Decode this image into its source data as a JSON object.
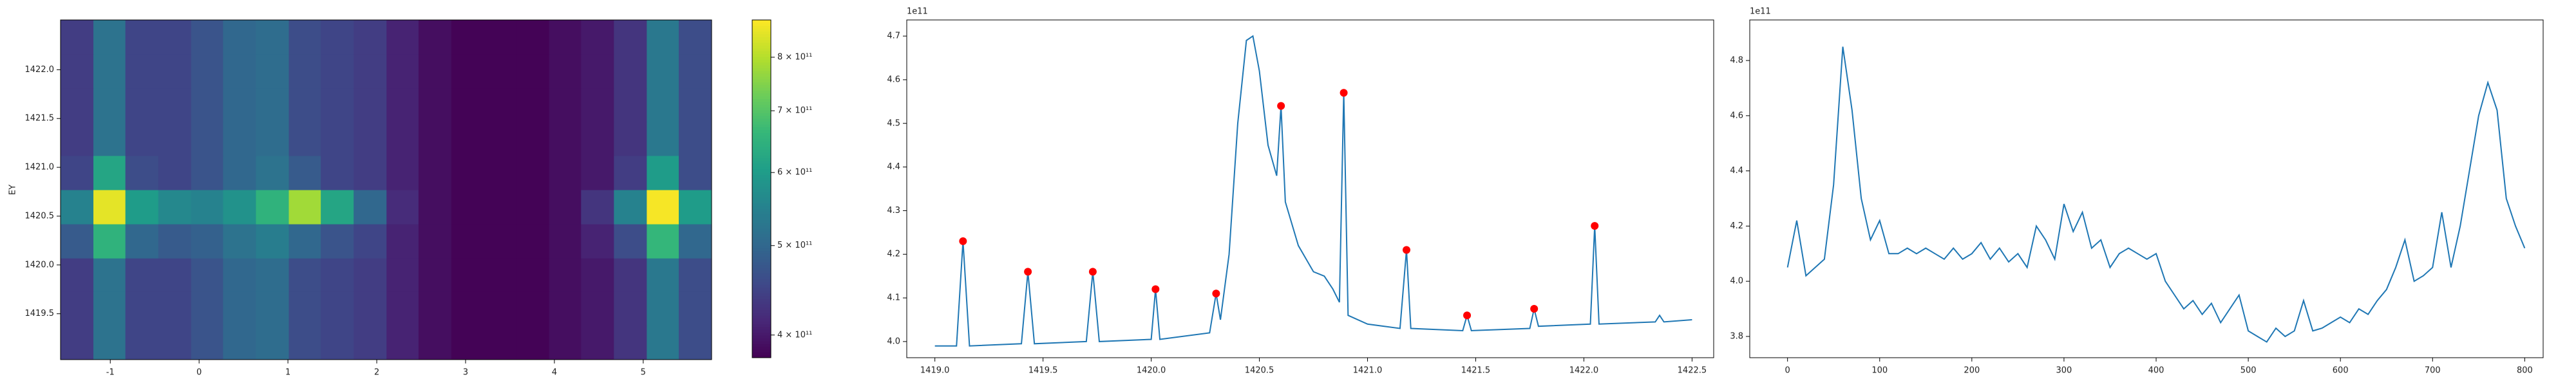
{
  "chart_data": [
    {
      "type": "heatmap",
      "ylabel": "EY",
      "x_edges": [
        -1.56,
        -1.19,
        -0.83,
        -0.46,
        -0.09,
        0.27,
        0.64,
        1.01,
        1.37,
        1.74,
        2.11,
        2.47,
        2.84,
        3.21,
        3.57,
        3.94,
        4.3,
        4.67,
        5.04,
        5.4,
        5.77
      ],
      "y_edges": [
        1419.03,
        1419.38,
        1419.73,
        1420.07,
        1420.42,
        1420.77,
        1421.12,
        1421.47,
        1421.81,
        1422.16,
        1422.51
      ],
      "z": [
        [
          440000000000.0,
          520000000000.0,
          450000000000.0,
          450000000000.0,
          470000000000.0,
          500000000000.0,
          510000000000.0,
          460000000000.0,
          450000000000.0,
          440000000000.0,
          410000000000.0,
          390000000000.0,
          380000000000.0,
          380000000000.0,
          380000000000.0,
          390000000000.0,
          400000000000.0,
          430000000000.0,
          530000000000.0,
          460000000000.0
        ],
        [
          440000000000.0,
          520000000000.0,
          450000000000.0,
          450000000000.0,
          470000000000.0,
          500000000000.0,
          510000000000.0,
          460000000000.0,
          450000000000.0,
          440000000000.0,
          410000000000.0,
          390000000000.0,
          380000000000.0,
          380000000000.0,
          380000000000.0,
          390000000000.0,
          400000000000.0,
          430000000000.0,
          530000000000.0,
          460000000000.0
        ],
        [
          440000000000.0,
          520000000000.0,
          450000000000.0,
          450000000000.0,
          470000000000.0,
          500000000000.0,
          510000000000.0,
          460000000000.0,
          450000000000.0,
          440000000000.0,
          410000000000.0,
          390000000000.0,
          380000000000.0,
          380000000000.0,
          380000000000.0,
          390000000000.0,
          400000000000.0,
          430000000000.0,
          530000000000.0,
          460000000000.0
        ],
        [
          480000000000.0,
          650000000000.0,
          500000000000.0,
          480000000000.0,
          490000000000.0,
          520000000000.0,
          540000000000.0,
          500000000000.0,
          470000000000.0,
          450000000000.0,
          410000000000.0,
          390000000000.0,
          380000000000.0,
          380000000000.0,
          380000000000.0,
          390000000000.0,
          410000000000.0,
          460000000000.0,
          660000000000.0,
          500000000000.0
        ],
        [
          550000000000.0,
          850000000000.0,
          600000000000.0,
          560000000000.0,
          550000000000.0,
          580000000000.0,
          650000000000.0,
          780000000000.0,
          620000000000.0,
          500000000000.0,
          420000000000.0,
          390000000000.0,
          380000000000.0,
          380000000000.0,
          380000000000.0,
          390000000000.0,
          430000000000.0,
          550000000000.0,
          870000000000.0,
          600000000000.0
        ],
        [
          450000000000.0,
          620000000000.0,
          460000000000.0,
          450000000000.0,
          470000000000.0,
          500000000000.0,
          520000000000.0,
          480000000000.0,
          450000000000.0,
          440000000000.0,
          410000000000.0,
          390000000000.0,
          380000000000.0,
          380000000000.0,
          380000000000.0,
          390000000000.0,
          400000000000.0,
          440000000000.0,
          600000000000.0,
          460000000000.0
        ],
        [
          440000000000.0,
          520000000000.0,
          450000000000.0,
          450000000000.0,
          470000000000.0,
          500000000000.0,
          510000000000.0,
          460000000000.0,
          450000000000.0,
          440000000000.0,
          410000000000.0,
          390000000000.0,
          380000000000.0,
          380000000000.0,
          380000000000.0,
          390000000000.0,
          400000000000.0,
          430000000000.0,
          530000000000.0,
          460000000000.0
        ],
        [
          440000000000.0,
          520000000000.0,
          450000000000.0,
          450000000000.0,
          470000000000.0,
          500000000000.0,
          510000000000.0,
          460000000000.0,
          450000000000.0,
          440000000000.0,
          410000000000.0,
          390000000000.0,
          380000000000.0,
          380000000000.0,
          380000000000.0,
          390000000000.0,
          400000000000.0,
          430000000000.0,
          530000000000.0,
          460000000000.0
        ],
        [
          440000000000.0,
          520000000000.0,
          450000000000.0,
          450000000000.0,
          470000000000.0,
          500000000000.0,
          510000000000.0,
          460000000000.0,
          450000000000.0,
          440000000000.0,
          410000000000.0,
          390000000000.0,
          380000000000.0,
          380000000000.0,
          380000000000.0,
          390000000000.0,
          400000000000.0,
          430000000000.0,
          530000000000.0,
          460000000000.0
        ],
        [
          440000000000.0,
          520000000000.0,
          450000000000.0,
          450000000000.0,
          470000000000.0,
          500000000000.0,
          510000000000.0,
          460000000000.0,
          450000000000.0,
          440000000000.0,
          410000000000.0,
          390000000000.0,
          380000000000.0,
          380000000000.0,
          380000000000.0,
          390000000000.0,
          400000000000.0,
          430000000000.0,
          530000000000.0,
          460000000000.0
        ]
      ],
      "xlim": [
        -1.56,
        5.77
      ],
      "ylim": [
        1419.03,
        1422.51
      ],
      "xticks": [
        -1,
        0,
        1,
        2,
        3,
        4,
        5
      ],
      "yticks": [
        1419.5,
        {
          "value": 1420,
          "label": "1420.0"
        },
        1420.5,
        {
          "value": 1421,
          "label": "1421.0"
        },
        1421.5,
        {
          "value": 1422,
          "label": "1422.0"
        }
      ],
      "colormap": "viridis",
      "colorbar": {
        "scale": "log",
        "lim": [
          378000000000.0,
          878000000000.0
        ],
        "ticks": [
          {
            "value": 400000000000.0,
            "label": "4 × 10¹¹"
          },
          {
            "value": 500000000000.0,
            "label": "5 × 10¹¹"
          },
          {
            "value": 600000000000.0,
            "label": "6 × 10¹¹"
          },
          {
            "value": 700000000000.0,
            "label": "7 × 10¹¹"
          },
          {
            "value": 800000000000.0,
            "label": "8 × 10¹¹"
          }
        ]
      }
    },
    {
      "type": "line",
      "offset_text": "1e11",
      "color": "#1f77b4",
      "x": [
        1419.0,
        1419.1,
        1419.13,
        1419.16,
        1419.4,
        1419.43,
        1419.46,
        1419.7,
        1419.73,
        1419.76,
        1420.0,
        1420.02,
        1420.04,
        1420.27,
        1420.3,
        1420.32,
        1420.36,
        1420.4,
        1420.44,
        1420.47,
        1420.5,
        1420.54,
        1420.58,
        1420.6,
        1420.62,
        1420.68,
        1420.75,
        1420.8,
        1420.84,
        1420.87,
        1420.89,
        1420.91,
        1421.0,
        1421.15,
        1421.18,
        1421.2,
        1421.44,
        1421.46,
        1421.48,
        1421.75,
        1421.77,
        1421.79,
        1422.03,
        1422.05,
        1422.07,
        1422.33,
        1422.35,
        1422.37,
        1422.5
      ],
      "values": [
        3.99,
        3.99,
        4.23,
        3.99,
        3.995,
        4.16,
        3.995,
        4.0,
        4.16,
        4.0,
        4.005,
        4.12,
        4.005,
        4.02,
        4.11,
        4.05,
        4.2,
        4.5,
        4.69,
        4.7,
        4.62,
        4.45,
        4.38,
        4.54,
        4.32,
        4.22,
        4.16,
        4.15,
        4.12,
        4.09,
        4.57,
        4.06,
        4.04,
        4.03,
        4.21,
        4.03,
        4.025,
        4.06,
        4.025,
        4.03,
        4.075,
        4.035,
        4.04,
        4.265,
        4.04,
        4.045,
        4.06,
        4.045,
        4.05
      ],
      "markers": {
        "color": "red",
        "x": [
          1419.13,
          1419.43,
          1419.73,
          1420.02,
          1420.3,
          1420.6,
          1420.89,
          1421.18,
          1421.46,
          1421.77,
          1422.05
        ],
        "values": [
          4.23,
          4.16,
          4.16,
          4.12,
          4.11,
          4.54,
          4.57,
          4.21,
          4.06,
          4.075,
          4.265
        ]
      },
      "xlim": [
        1418.87,
        1422.6
      ],
      "ylim": [
        3.963,
        4.737
      ],
      "xticks": [
        {
          "value": 1419,
          "label": "1419.0"
        },
        1419.5,
        {
          "value": 1420,
          "label": "1420.0"
        },
        1420.5,
        {
          "value": 1421,
          "label": "1421.0"
        },
        1421.5,
        {
          "value": 1422,
          "label": "1422.0"
        },
        1422.5
      ],
      "yticks": [
        {
          "value": 4,
          "label": "4.0"
        },
        4.1,
        4.2,
        4.3,
        4.4,
        4.5,
        4.6,
        4.7
      ]
    },
    {
      "type": "line",
      "offset_text": "1e11",
      "color": "#1f77b4",
      "x": [
        0,
        10,
        20,
        30,
        40,
        50,
        60,
        70,
        80,
        90,
        100,
        110,
        120,
        130,
        140,
        150,
        160,
        170,
        180,
        190,
        200,
        210,
        220,
        230,
        240,
        250,
        260,
        270,
        280,
        290,
        300,
        310,
        320,
        330,
        340,
        350,
        360,
        370,
        380,
        390,
        400,
        410,
        420,
        430,
        440,
        450,
        460,
        470,
        480,
        490,
        500,
        510,
        520,
        530,
        540,
        550,
        560,
        570,
        580,
        590,
        600,
        610,
        620,
        630,
        640,
        650,
        660,
        670,
        680,
        690,
        700,
        710,
        720,
        730,
        740,
        750,
        760,
        770,
        780,
        790,
        800
      ],
      "values": [
        4.05,
        4.22,
        4.02,
        4.05,
        4.08,
        4.35,
        4.85,
        4.62,
        4.3,
        4.15,
        4.22,
        4.1,
        4.1,
        4.12,
        4.1,
        4.12,
        4.1,
        4.08,
        4.12,
        4.08,
        4.1,
        4.14,
        4.08,
        4.12,
        4.07,
        4.1,
        4.05,
        4.2,
        4.15,
        4.08,
        4.28,
        4.18,
        4.25,
        4.12,
        4.15,
        4.05,
        4.1,
        4.12,
        4.1,
        4.08,
        4.1,
        4.0,
        3.95,
        3.9,
        3.93,
        3.88,
        3.92,
        3.85,
        3.9,
        3.95,
        3.82,
        3.8,
        3.78,
        3.83,
        3.8,
        3.82,
        3.93,
        3.82,
        3.83,
        3.85,
        3.87,
        3.85,
        3.9,
        3.88,
        3.93,
        3.97,
        4.05,
        4.15,
        4.0,
        4.02,
        4.05,
        4.25,
        4.05,
        4.2,
        4.4,
        4.6,
        4.72,
        4.62,
        4.3,
        4.2,
        4.12
      ],
      "xlim": [
        -41,
        820
      ],
      "ylim": [
        3.723,
        4.947
      ],
      "xticks": [
        0,
        100,
        200,
        300,
        400,
        500,
        600,
        700,
        800
      ],
      "yticks": [
        3.8,
        {
          "value": 4,
          "label": "4.0"
        },
        4.2,
        4.4,
        4.6,
        4.8
      ]
    }
  ]
}
